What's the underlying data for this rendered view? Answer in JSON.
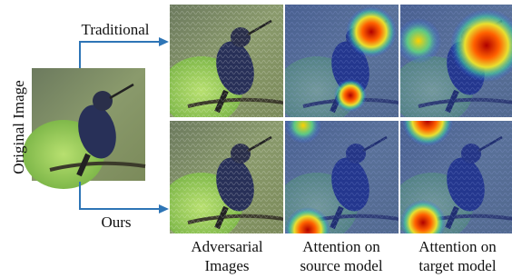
{
  "labels": {
    "original": "Original Image",
    "traditional": "Traditional",
    "ours": "Ours"
  },
  "columns": [
    {
      "line1": "Adversarial",
      "line2": "Images"
    },
    {
      "line1": "Attention on",
      "line2": "source model"
    },
    {
      "line1": "Attention on",
      "line2": "target model"
    }
  ]
}
